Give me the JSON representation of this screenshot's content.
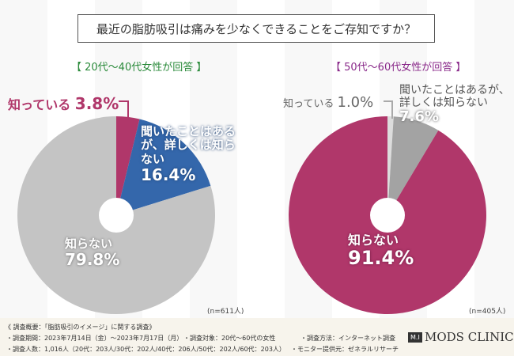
{
  "title": "最近の脂肪吸引は痛みを少なくできることをご存知ですか？",
  "chart_data": [
    {
      "type": "pie",
      "title": "【 20代～40代女性が回答 】",
      "n": "(n=611人)",
      "slices": [
        {
          "label": "知っている",
          "value": 3.8,
          "text": "3.8%",
          "color": "#b0376a"
        },
        {
          "label": "聞いたことはあるが、詳しくは知らない",
          "value": 16.4,
          "text": "16.4%",
          "color": "#3467ab"
        },
        {
          "label": "知らない",
          "value": 79.8,
          "text": "79.8%",
          "color": "#c4c4c4"
        }
      ]
    },
    {
      "type": "pie",
      "title": "【 50代～60代女性が回答 】",
      "n": "(n=405人)",
      "slices": [
        {
          "label": "知っている",
          "value": 1.0,
          "text": "1.0%",
          "color": "#dcdcdc"
        },
        {
          "label": "聞いたことはあるが、詳しくは知らない",
          "value": 7.6,
          "text": "7.6%",
          "color": "#a3a3a3"
        },
        {
          "label": "知らない",
          "value": 91.4,
          "text": "91.4%",
          "color": "#b0376a"
        }
      ]
    }
  ],
  "footer": {
    "heading": "《 調査概要：「脂肪吸引のイメージ」に関する調査》",
    "period": "・調査期間：2023年7月14日（金）～2023年7月17日（月）",
    "target": "・調査対象：20代～60代の女性",
    "method": "・調査方法：インターネット調査",
    "count": "・調査人数：1,016人（20代：203人/30代：202人/40代：206人/50代：202人/60代：203人）",
    "provider": "・モニター提供元：ゼネラルリサーチ",
    "logo": "MODS CLINIC",
    "logo_mark": "M.I"
  }
}
